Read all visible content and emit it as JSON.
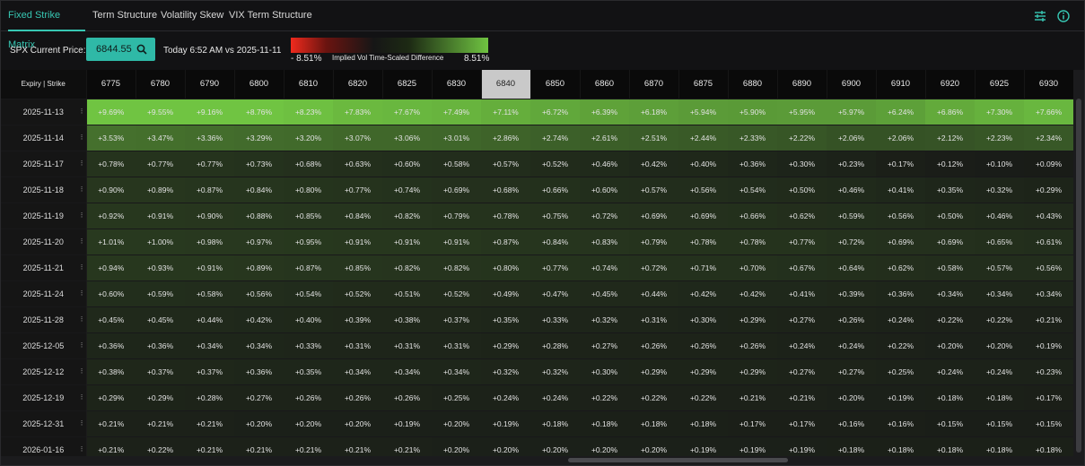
{
  "tabs": [
    "Fixed Strike Matrix",
    "Term Structure",
    "Volatility Skew",
    "VIX Term Structure"
  ],
  "toolbar": {
    "settings_icon": "sliders-icon",
    "info_icon": "info-icon"
  },
  "controls": {
    "spx_label": "SPX Current Price:",
    "price": "6844.55",
    "compare": "Today 6:52 AM vs 2025-11-11",
    "scale_min": "- 8.51%",
    "scale_title": "Implied Vol Time-Scaled Difference",
    "scale_max": "8.51%"
  },
  "colors": {
    "accent": "#37c7b3",
    "positive": "#6fc341",
    "negative": "#f02a1d"
  },
  "matrix": {
    "corner": "Expiry | Strike",
    "atm_strike": "6840",
    "strikes": [
      "6775",
      "6780",
      "6790",
      "6800",
      "6810",
      "6820",
      "6825",
      "6830",
      "6840",
      "6850",
      "6860",
      "6870",
      "6875",
      "6880",
      "6890",
      "6900",
      "6910",
      "6920",
      "6925",
      "6930"
    ],
    "rows": [
      {
        "expiry": "2025-11-13",
        "values": [
          "+9.69%",
          "+9.55%",
          "+9.16%",
          "+8.76%",
          "+8.23%",
          "+7.83%",
          "+7.67%",
          "+7.49%",
          "+7.11%",
          "+6.72%",
          "+6.39%",
          "+6.18%",
          "+5.94%",
          "+5.90%",
          "+5.95%",
          "+5.97%",
          "+6.24%",
          "+6.86%",
          "+7.30%",
          "+7.66%"
        ]
      },
      {
        "expiry": "2025-11-14",
        "values": [
          "+3.53%",
          "+3.47%",
          "+3.36%",
          "+3.29%",
          "+3.20%",
          "+3.07%",
          "+3.06%",
          "+3.01%",
          "+2.86%",
          "+2.74%",
          "+2.61%",
          "+2.51%",
          "+2.44%",
          "+2.33%",
          "+2.22%",
          "+2.06%",
          "+2.06%",
          "+2.12%",
          "+2.23%",
          "+2.34%"
        ]
      },
      {
        "expiry": "2025-11-17",
        "values": [
          "+0.78%",
          "+0.77%",
          "+0.77%",
          "+0.73%",
          "+0.68%",
          "+0.63%",
          "+0.60%",
          "+0.58%",
          "+0.57%",
          "+0.52%",
          "+0.46%",
          "+0.42%",
          "+0.40%",
          "+0.36%",
          "+0.30%",
          "+0.23%",
          "+0.17%",
          "+0.12%",
          "+0.10%",
          "+0.09%"
        ]
      },
      {
        "expiry": "2025-11-18",
        "values": [
          "+0.90%",
          "+0.89%",
          "+0.87%",
          "+0.84%",
          "+0.80%",
          "+0.77%",
          "+0.74%",
          "+0.69%",
          "+0.68%",
          "+0.66%",
          "+0.60%",
          "+0.57%",
          "+0.56%",
          "+0.54%",
          "+0.50%",
          "+0.46%",
          "+0.41%",
          "+0.35%",
          "+0.32%",
          "+0.29%"
        ]
      },
      {
        "expiry": "2025-11-19",
        "values": [
          "+0.92%",
          "+0.91%",
          "+0.90%",
          "+0.88%",
          "+0.85%",
          "+0.84%",
          "+0.82%",
          "+0.79%",
          "+0.78%",
          "+0.75%",
          "+0.72%",
          "+0.69%",
          "+0.69%",
          "+0.66%",
          "+0.62%",
          "+0.59%",
          "+0.56%",
          "+0.50%",
          "+0.46%",
          "+0.43%"
        ]
      },
      {
        "expiry": "2025-11-20",
        "values": [
          "+1.01%",
          "+1.00%",
          "+0.98%",
          "+0.97%",
          "+0.95%",
          "+0.91%",
          "+0.91%",
          "+0.91%",
          "+0.87%",
          "+0.84%",
          "+0.83%",
          "+0.79%",
          "+0.78%",
          "+0.78%",
          "+0.77%",
          "+0.72%",
          "+0.69%",
          "+0.69%",
          "+0.65%",
          "+0.61%"
        ]
      },
      {
        "expiry": "2025-11-21",
        "values": [
          "+0.94%",
          "+0.93%",
          "+0.91%",
          "+0.89%",
          "+0.87%",
          "+0.85%",
          "+0.82%",
          "+0.82%",
          "+0.80%",
          "+0.77%",
          "+0.74%",
          "+0.72%",
          "+0.71%",
          "+0.70%",
          "+0.67%",
          "+0.64%",
          "+0.62%",
          "+0.58%",
          "+0.57%",
          "+0.56%"
        ]
      },
      {
        "expiry": "2025-11-24",
        "values": [
          "+0.60%",
          "+0.59%",
          "+0.58%",
          "+0.56%",
          "+0.54%",
          "+0.52%",
          "+0.51%",
          "+0.52%",
          "+0.49%",
          "+0.47%",
          "+0.45%",
          "+0.44%",
          "+0.42%",
          "+0.42%",
          "+0.41%",
          "+0.39%",
          "+0.36%",
          "+0.34%",
          "+0.34%",
          "+0.34%"
        ]
      },
      {
        "expiry": "2025-11-28",
        "values": [
          "+0.45%",
          "+0.45%",
          "+0.44%",
          "+0.42%",
          "+0.40%",
          "+0.39%",
          "+0.38%",
          "+0.37%",
          "+0.35%",
          "+0.33%",
          "+0.32%",
          "+0.31%",
          "+0.30%",
          "+0.29%",
          "+0.27%",
          "+0.26%",
          "+0.24%",
          "+0.22%",
          "+0.22%",
          "+0.21%"
        ]
      },
      {
        "expiry": "2025-12-05",
        "values": [
          "+0.36%",
          "+0.36%",
          "+0.34%",
          "+0.34%",
          "+0.33%",
          "+0.31%",
          "+0.31%",
          "+0.31%",
          "+0.29%",
          "+0.28%",
          "+0.27%",
          "+0.26%",
          "+0.26%",
          "+0.26%",
          "+0.24%",
          "+0.24%",
          "+0.22%",
          "+0.20%",
          "+0.20%",
          "+0.19%"
        ]
      },
      {
        "expiry": "2025-12-12",
        "values": [
          "+0.38%",
          "+0.37%",
          "+0.37%",
          "+0.36%",
          "+0.35%",
          "+0.34%",
          "+0.34%",
          "+0.34%",
          "+0.32%",
          "+0.32%",
          "+0.30%",
          "+0.29%",
          "+0.29%",
          "+0.29%",
          "+0.27%",
          "+0.27%",
          "+0.25%",
          "+0.24%",
          "+0.24%",
          "+0.23%"
        ]
      },
      {
        "expiry": "2025-12-19",
        "values": [
          "+0.29%",
          "+0.29%",
          "+0.28%",
          "+0.27%",
          "+0.26%",
          "+0.26%",
          "+0.26%",
          "+0.25%",
          "+0.24%",
          "+0.24%",
          "+0.22%",
          "+0.22%",
          "+0.22%",
          "+0.21%",
          "+0.21%",
          "+0.20%",
          "+0.19%",
          "+0.18%",
          "+0.18%",
          "+0.17%"
        ]
      },
      {
        "expiry": "2025-12-31",
        "values": [
          "+0.21%",
          "+0.21%",
          "+0.21%",
          "+0.20%",
          "+0.20%",
          "+0.20%",
          "+0.19%",
          "+0.20%",
          "+0.19%",
          "+0.18%",
          "+0.18%",
          "+0.18%",
          "+0.18%",
          "+0.17%",
          "+0.17%",
          "+0.16%",
          "+0.16%",
          "+0.15%",
          "+0.15%",
          "+0.15%"
        ]
      },
      {
        "expiry": "2026-01-16",
        "values": [
          "+0.21%",
          "+0.22%",
          "+0.21%",
          "+0.21%",
          "+0.21%",
          "+0.21%",
          "+0.21%",
          "+0.20%",
          "+0.20%",
          "+0.20%",
          "+0.20%",
          "+0.20%",
          "+0.19%",
          "+0.19%",
          "+0.19%",
          "+0.18%",
          "+0.18%",
          "+0.18%",
          "+0.18%",
          "+0.18%"
        ]
      }
    ]
  }
}
